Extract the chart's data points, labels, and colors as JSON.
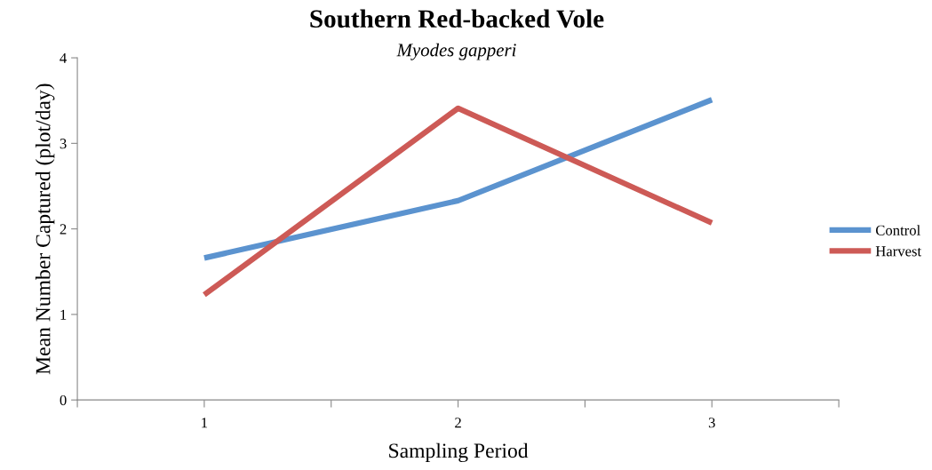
{
  "chart_data": {
    "type": "line",
    "title": "Southern Red-backed Vole",
    "subtitle": "Myodes gapperi",
    "xlabel": "Sampling Period",
    "ylabel": "Mean Number Captured (plot/day)",
    "x": [
      1,
      2,
      3
    ],
    "series": [
      {
        "name": "Control",
        "color": "#5b93cf",
        "values": [
          1.66,
          2.33,
          3.51
        ]
      },
      {
        "name": "Harvest",
        "color": "#cd5a56",
        "values": [
          1.23,
          3.41,
          2.07
        ]
      }
    ],
    "xlim": [
      0.5,
      3.5
    ],
    "xticks": [
      {
        "value": 0.5,
        "label": null
      },
      1,
      {
        "value": 1.5,
        "label": null
      },
      2,
      {
        "value": 2.5,
        "label": null
      },
      3,
      {
        "value": 3.5,
        "label": null
      }
    ],
    "ylim": [
      0,
      4
    ],
    "yticks": [
      0,
      1,
      2,
      3,
      4
    ],
    "grid": false,
    "legend": "right",
    "marker": "none",
    "line_style": "solid"
  }
}
